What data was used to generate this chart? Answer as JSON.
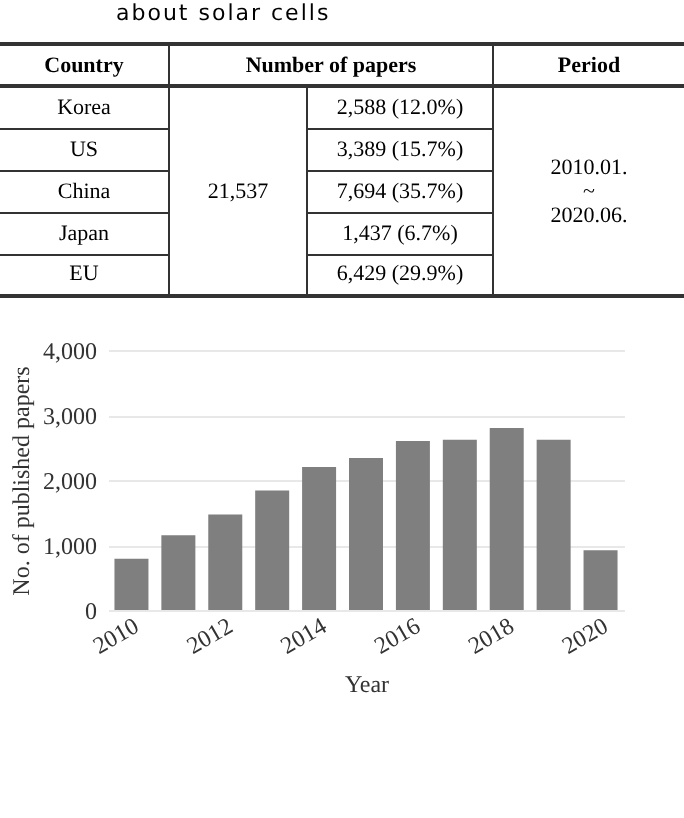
{
  "chart_data": [
    {
      "type": "other",
      "title": "about solar cells",
      "annotations": [
        "Country",
        "Number of papers",
        "Period",
        "21,537",
        "2010.01.",
        "~",
        "2020.06."
      ],
      "categories": [
        "Korea",
        "US",
        "China",
        "Japan",
        "EU"
      ],
      "value_labels": [
        "2,588 (12.0%)",
        "3,389 (15.7%)",
        "7,694 (35.7%)",
        "1,437 (6.7%)",
        "6,429 (29.9%)"
      ]
    },
    {
      "type": "bar",
      "xlabel": "Year",
      "ylabel": "No. of published papers",
      "color": "#7f7f7f",
      "grid": "y",
      "categories": [
        "2010",
        null,
        "2012",
        null,
        "2014",
        null,
        "2016",
        null,
        "2018",
        null,
        "2020"
      ],
      "values": [
        790,
        1150,
        1470,
        1840,
        2200,
        2340,
        2600,
        2620,
        2800,
        2620,
        920
      ],
      "ylim": [
        0,
        4000
      ],
      "yticks": [
        {
          "value": 0,
          "label": "0"
        },
        {
          "value": 1000,
          "label": "1,000"
        },
        {
          "value": 2000,
          "label": "2,000"
        },
        {
          "value": 3000,
          "label": "3,000"
        },
        {
          "value": 4000,
          "label": "4,000"
        }
      ]
    }
  ]
}
